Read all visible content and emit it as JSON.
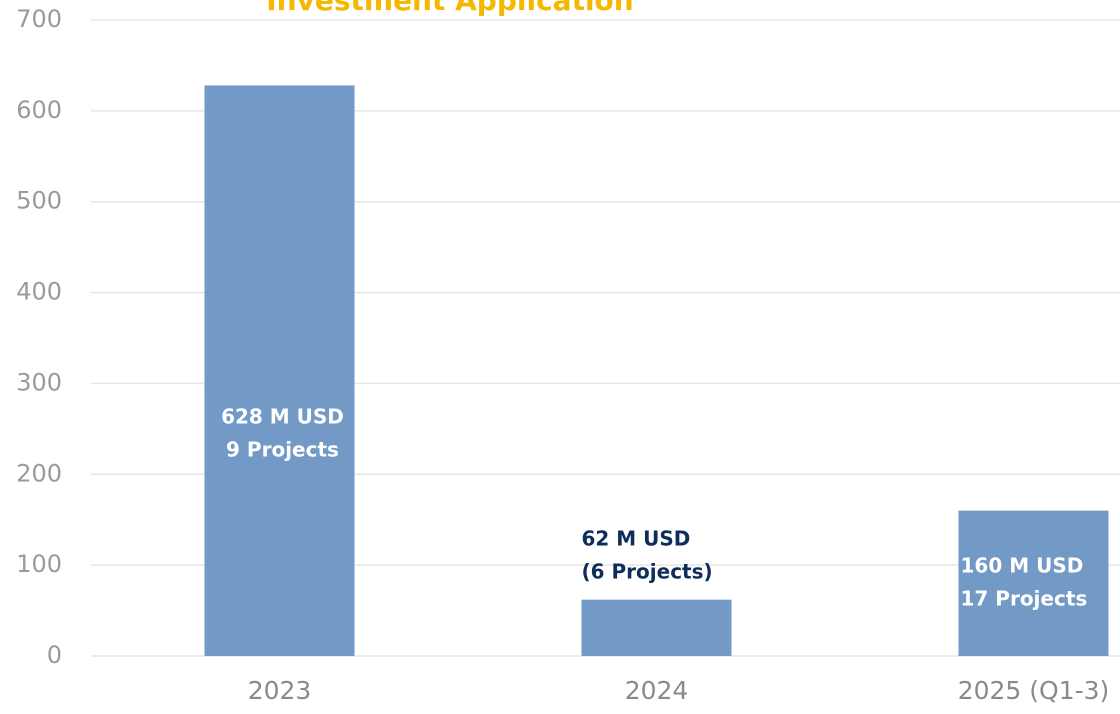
{
  "chart_data": {
    "type": "bar",
    "title": "Investment Application",
    "categories": [
      "2023",
      "2024",
      "2025 (Q1-3)"
    ],
    "values": [
      628,
      62,
      160
    ],
    "value_labels": [
      [
        "628 M USD",
        "9 Projects"
      ],
      [
        "62 M USD",
        "(6 Projects)"
      ],
      [
        "160 M USD",
        "17 Projects"
      ]
    ],
    "color": "#7399c6",
    "ylim": [
      0,
      700
    ],
    "yticks": [
      0,
      100,
      200,
      300,
      400,
      500,
      600,
      700
    ],
    "grid": true
  }
}
